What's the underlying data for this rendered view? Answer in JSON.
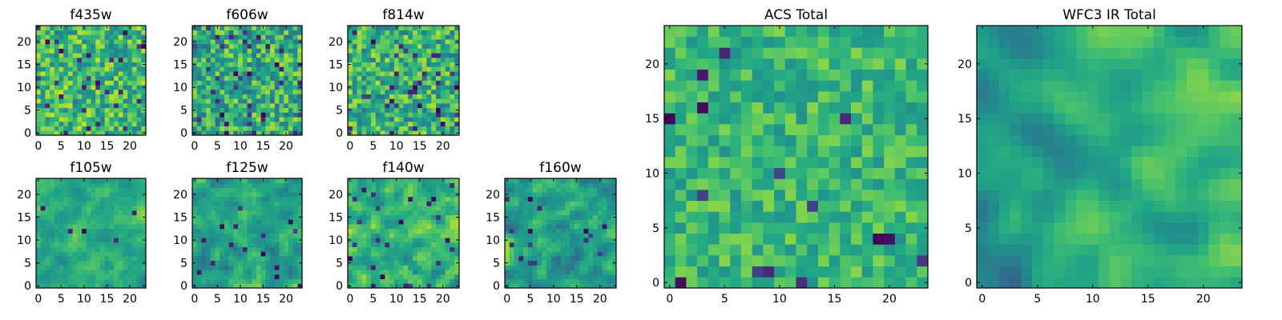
{
  "chart_data": [
    {
      "type": "heatmap",
      "title": "f435w",
      "rows": 24,
      "cols": 24,
      "colormap": "viridis",
      "seed": 11,
      "smooth": 0,
      "mean": 0.68,
      "spread": 0.24,
      "low_frac": 0.05,
      "x_ticks": [
        {
          "value": 0,
          "label": "0"
        },
        {
          "value": 5,
          "label": "5"
        },
        {
          "value": 10,
          "label": "10"
        },
        {
          "value": 15,
          "label": "15"
        },
        {
          "value": 20,
          "label": "20"
        }
      ],
      "y_ticks": [
        {
          "value": 0,
          "label": "0"
        },
        {
          "value": 5,
          "label": "5"
        },
        {
          "value": 10,
          "label": "10"
        },
        {
          "value": 15,
          "label": "15"
        },
        {
          "value": 20,
          "label": "20"
        }
      ]
    },
    {
      "type": "heatmap",
      "title": "f606w",
      "rows": 24,
      "cols": 24,
      "colormap": "viridis",
      "seed": 23,
      "smooth": 0,
      "mean": 0.62,
      "spread": 0.26,
      "low_frac": 0.06,
      "x_ticks": [
        {
          "value": 0,
          "label": "0"
        },
        {
          "value": 5,
          "label": "5"
        },
        {
          "value": 10,
          "label": "10"
        },
        {
          "value": 15,
          "label": "15"
        },
        {
          "value": 20,
          "label": "20"
        }
      ],
      "y_ticks": [
        {
          "value": 0,
          "label": "0"
        },
        {
          "value": 5,
          "label": "5"
        },
        {
          "value": 10,
          "label": "10"
        },
        {
          "value": 15,
          "label": "15"
        },
        {
          "value": 20,
          "label": "20"
        }
      ]
    },
    {
      "type": "heatmap",
      "title": "f814w",
      "rows": 24,
      "cols": 24,
      "colormap": "viridis",
      "seed": 37,
      "smooth": 0,
      "mean": 0.64,
      "spread": 0.25,
      "low_frac": 0.05,
      "x_ticks": [
        {
          "value": 0,
          "label": "0"
        },
        {
          "value": 5,
          "label": "5"
        },
        {
          "value": 10,
          "label": "10"
        },
        {
          "value": 15,
          "label": "15"
        },
        {
          "value": 20,
          "label": "20"
        }
      ],
      "y_ticks": [
        {
          "value": 0,
          "label": "0"
        },
        {
          "value": 5,
          "label": "5"
        },
        {
          "value": 10,
          "label": "10"
        },
        {
          "value": 15,
          "label": "15"
        },
        {
          "value": 20,
          "label": "20"
        }
      ]
    },
    {
      "type": "heatmap",
      "title": "f105w",
      "rows": 24,
      "cols": 24,
      "colormap": "viridis",
      "seed": 41,
      "smooth": 1,
      "mean": 0.63,
      "spread": 0.2,
      "low_frac": 0.02,
      "x_ticks": [
        {
          "value": 0,
          "label": "0"
        },
        {
          "value": 5,
          "label": "5"
        },
        {
          "value": 10,
          "label": "10"
        },
        {
          "value": 15,
          "label": "15"
        },
        {
          "value": 20,
          "label": "20"
        }
      ],
      "y_ticks": [
        {
          "value": 0,
          "label": "0"
        },
        {
          "value": 5,
          "label": "5"
        },
        {
          "value": 10,
          "label": "10"
        },
        {
          "value": 15,
          "label": "15"
        },
        {
          "value": 20,
          "label": "20"
        }
      ]
    },
    {
      "type": "heatmap",
      "title": "f125w",
      "rows": 24,
      "cols": 24,
      "colormap": "viridis",
      "seed": 53,
      "smooth": 1,
      "mean": 0.6,
      "spread": 0.22,
      "low_frac": 0.02,
      "x_ticks": [
        {
          "value": 0,
          "label": "0"
        },
        {
          "value": 5,
          "label": "5"
        },
        {
          "value": 10,
          "label": "10"
        },
        {
          "value": 15,
          "label": "15"
        },
        {
          "value": 20,
          "label": "20"
        }
      ],
      "y_ticks": [
        {
          "value": 0,
          "label": "0"
        },
        {
          "value": 5,
          "label": "5"
        },
        {
          "value": 10,
          "label": "10"
        },
        {
          "value": 15,
          "label": "15"
        },
        {
          "value": 20,
          "label": "20"
        }
      ]
    },
    {
      "type": "heatmap",
      "title": "f140w",
      "rows": 24,
      "cols": 24,
      "colormap": "viridis",
      "seed": 67,
      "smooth": 1,
      "mean": 0.64,
      "spread": 0.24,
      "low_frac": 0.03,
      "x_ticks": [
        {
          "value": 0,
          "label": "0"
        },
        {
          "value": 5,
          "label": "5"
        },
        {
          "value": 10,
          "label": "10"
        },
        {
          "value": 15,
          "label": "15"
        },
        {
          "value": 20,
          "label": "20"
        }
      ],
      "y_ticks": [
        {
          "value": 0,
          "label": "0"
        },
        {
          "value": 5,
          "label": "5"
        },
        {
          "value": 10,
          "label": "10"
        },
        {
          "value": 15,
          "label": "15"
        },
        {
          "value": 20,
          "label": "20"
        }
      ]
    },
    {
      "type": "heatmap",
      "title": "f160w",
      "rows": 24,
      "cols": 24,
      "colormap": "viridis",
      "seed": 79,
      "smooth": 1,
      "mean": 0.6,
      "spread": 0.26,
      "low_frac": 0.03,
      "x_ticks": [
        {
          "value": 0,
          "label": "0"
        },
        {
          "value": 5,
          "label": "5"
        },
        {
          "value": 10,
          "label": "10"
        },
        {
          "value": 15,
          "label": "15"
        },
        {
          "value": 20,
          "label": "20"
        }
      ],
      "y_ticks": [
        {
          "value": 0,
          "label": "0"
        },
        {
          "value": 5,
          "label": "5"
        },
        {
          "value": 10,
          "label": "10"
        },
        {
          "value": 15,
          "label": "15"
        },
        {
          "value": 20,
          "label": "20"
        }
      ]
    },
    {
      "type": "heatmap",
      "title": "ACS Total",
      "rows": 24,
      "cols": 24,
      "colormap": "viridis",
      "seed": 97,
      "smooth": 0,
      "mean": 0.66,
      "spread": 0.16,
      "low_frac": 0.025,
      "x_ticks": [
        {
          "value": 0,
          "label": "0"
        },
        {
          "value": 5,
          "label": "5"
        },
        {
          "value": 10,
          "label": "10"
        },
        {
          "value": 15,
          "label": "15"
        },
        {
          "value": 20,
          "label": "20"
        }
      ],
      "y_ticks": [
        {
          "value": 0,
          "label": "0"
        },
        {
          "value": 5,
          "label": "5"
        },
        {
          "value": 10,
          "label": "10"
        },
        {
          "value": 15,
          "label": "15"
        },
        {
          "value": 20,
          "label": "20"
        }
      ]
    },
    {
      "type": "heatmap",
      "title": "WFC3 IR Total",
      "rows": 24,
      "cols": 24,
      "colormap": "viridis",
      "seed": 131,
      "smooth": 2,
      "mean": 0.6,
      "spread": 0.2,
      "low_frac": 0.0,
      "gradient": 0.22,
      "x_ticks": [
        {
          "value": 0,
          "label": "0"
        },
        {
          "value": 5,
          "label": "5"
        },
        {
          "value": 10,
          "label": "10"
        },
        {
          "value": 15,
          "label": "15"
        },
        {
          "value": 20,
          "label": "20"
        }
      ],
      "y_ticks": [
        {
          "value": 0,
          "label": "0"
        },
        {
          "value": 5,
          "label": "5"
        },
        {
          "value": 10,
          "label": "10"
        },
        {
          "value": 15,
          "label": "15"
        },
        {
          "value": 20,
          "label": "20"
        }
      ]
    }
  ]
}
